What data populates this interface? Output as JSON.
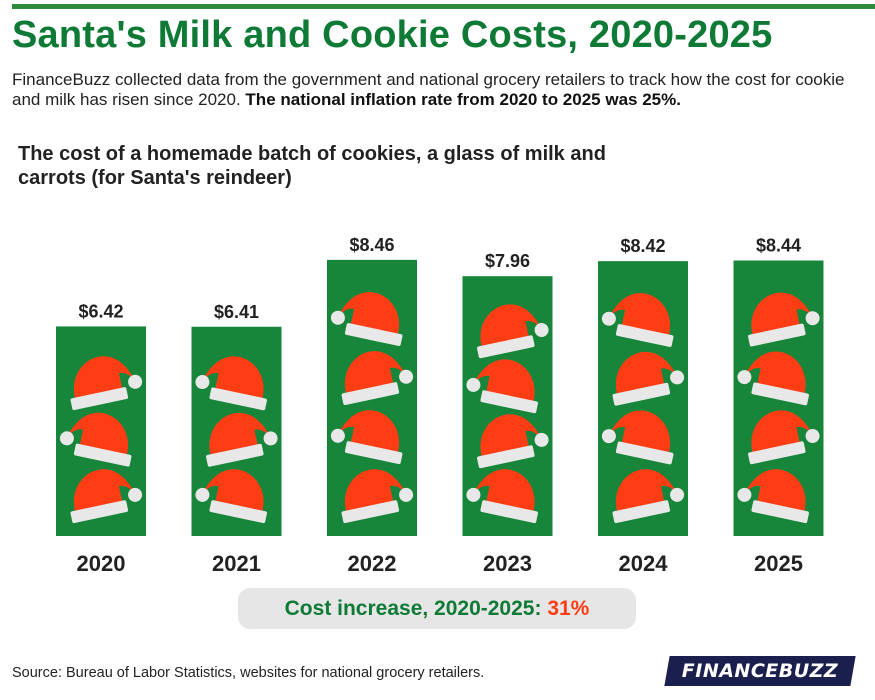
{
  "header": {
    "title": "Santa's Milk and Cookie Costs, 2020-2025",
    "intro_text": "FinanceBuzz collected data from the government and national grocery retailers to track how the cost for cookie and milk has risen since 2020.",
    "intro_bold": "The national inflation rate from 2020 to 2025 was 25%."
  },
  "chart_data": {
    "type": "bar",
    "title": "The cost of a homemade batch of cookies, a glass of milk and carrots (for Santa's reindeer)",
    "categories": [
      "2020",
      "2021",
      "2022",
      "2023",
      "2024",
      "2025"
    ],
    "values": [
      6.42,
      6.41,
      8.46,
      7.96,
      8.42,
      8.44
    ],
    "value_labels": [
      "$6.42",
      "$6.41",
      "$8.46",
      "$7.96",
      "$8.42",
      "$8.44"
    ],
    "ylim": [
      0,
      10.6
    ],
    "grid": false,
    "bar_color": "#17853a",
    "bar_decoration": "santa-hat-icon"
  },
  "summary": {
    "label": "Cost increase, 2020-2025:",
    "value": "31%"
  },
  "footer": {
    "source": "Source: Bureau of Labor Statistics, websites for national grocery retailers.",
    "logo": "FINANCEBUZZ"
  },
  "colors": {
    "brand_green": "#0e7a36",
    "bar_green": "#17853a",
    "hat_red": "#ff3d14",
    "hat_trim": "#e8e8e8",
    "accent_orange": "#ff3d14",
    "logo_navy": "#1b1f4d"
  }
}
